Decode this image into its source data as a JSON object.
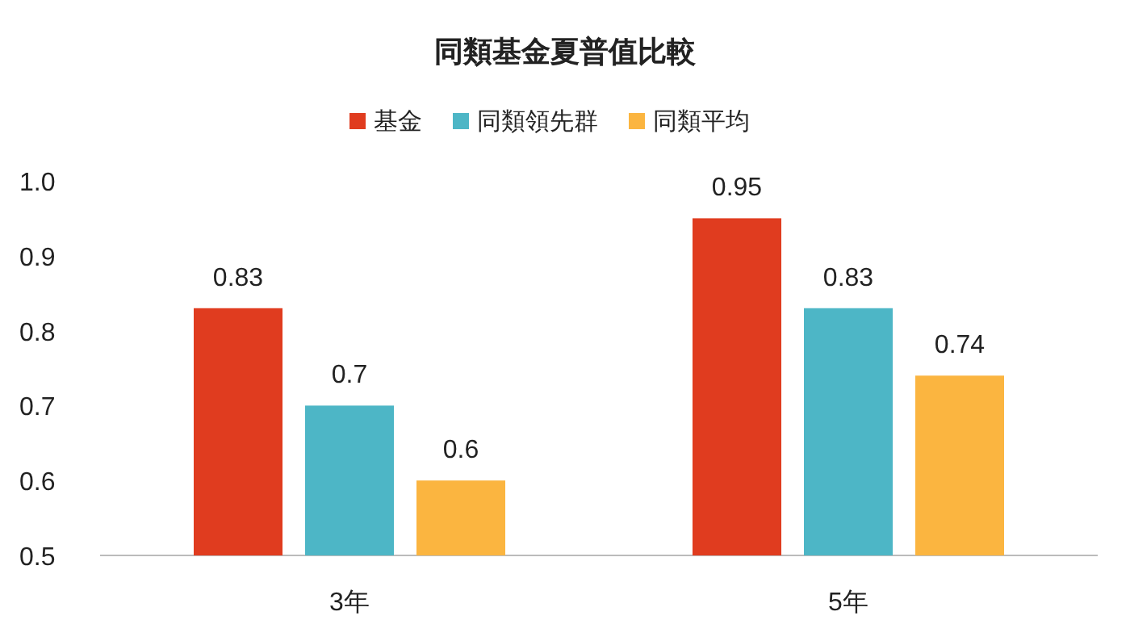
{
  "chart_data": {
    "type": "bar",
    "title": "同類基金夏普值比較",
    "categories": [
      "3年",
      "5年"
    ],
    "series": [
      {
        "name": "基金",
        "color": "#e03c1f",
        "values": [
          0.83,
          0.95
        ]
      },
      {
        "name": "同類領先群",
        "color": "#4db6c6",
        "values": [
          0.7,
          0.83
        ]
      },
      {
        "name": "同類平均",
        "color": "#fbb540",
        "values": [
          0.6,
          0.74
        ]
      }
    ],
    "ylim": [
      0.5,
      1.0
    ],
    "yticks": [
      0.5,
      0.6,
      0.7,
      0.8,
      0.9,
      {
        "value": 1.0,
        "label": "1.0"
      }
    ],
    "data_labels": true,
    "legend": "top",
    "grid": false
  }
}
